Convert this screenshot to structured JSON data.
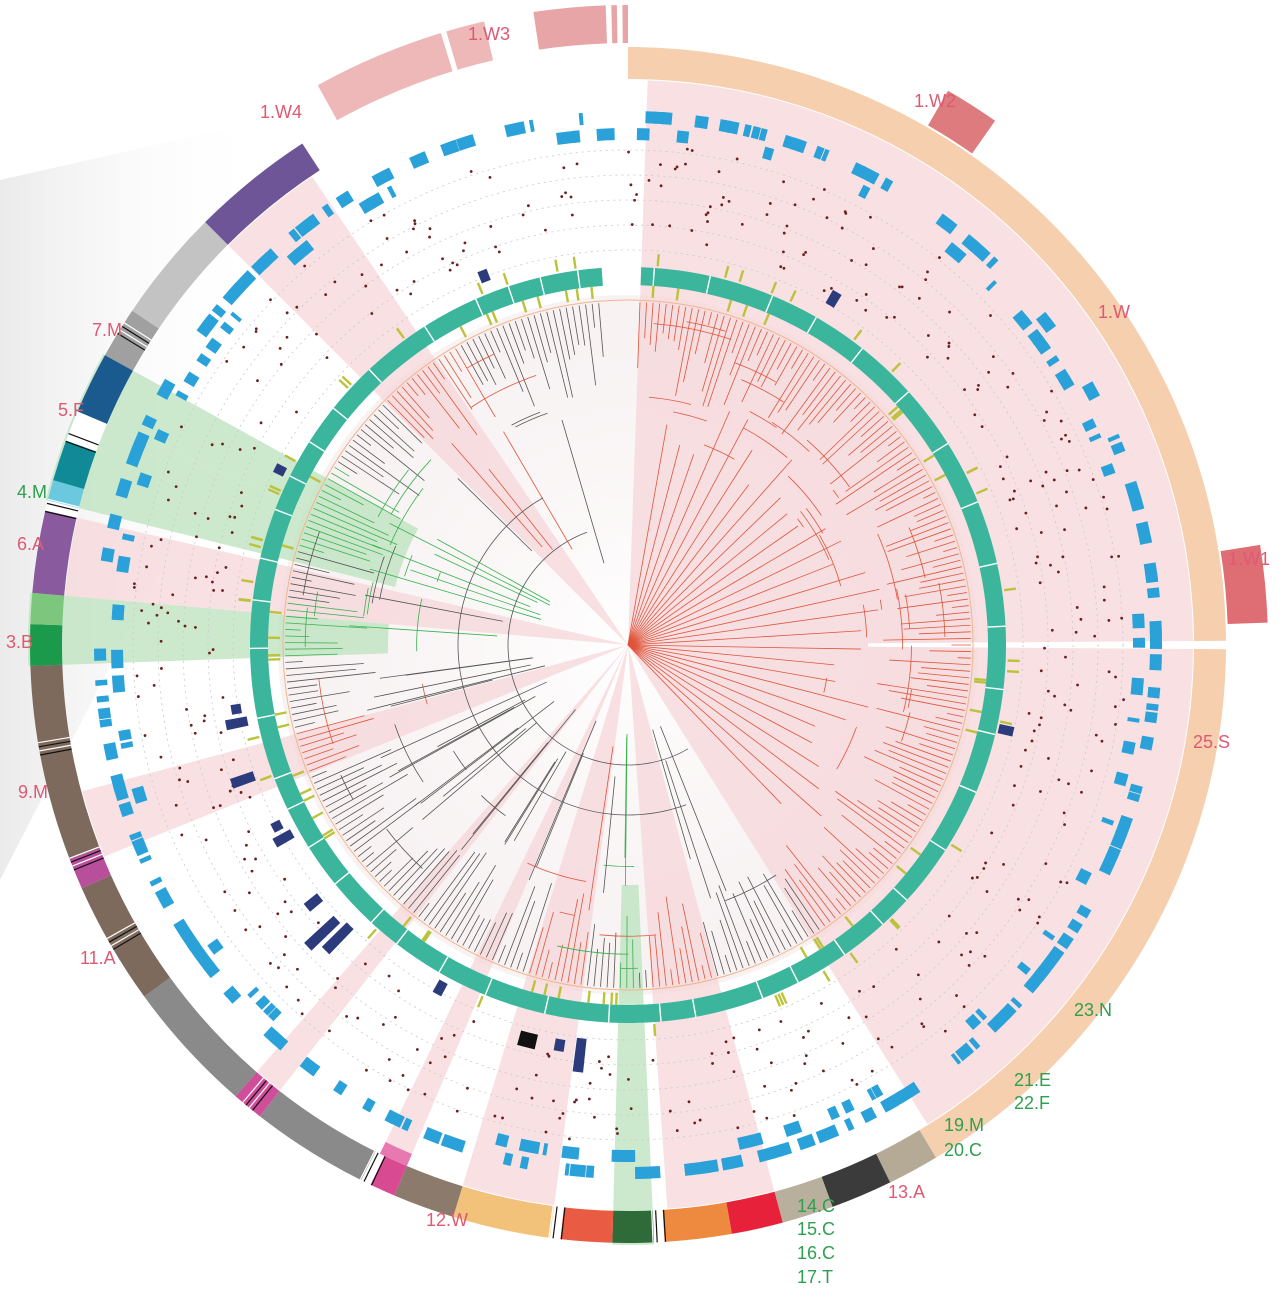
{
  "colors": {
    "pink_text": "#de5a72",
    "green_text": "#2ea04f",
    "highlight_pink": "#f6d6d9",
    "highlight_green": "#bfe3c0",
    "peach_ring": "#f5cfae",
    "teal_ring": "#3bb59c",
    "blue_ring": "#2aa2d9",
    "lime_ticks": "#bcc23a",
    "tree_red": "#e0543a",
    "tree_gray": "#555555",
    "tree_green": "#37b24d",
    "dots": "#6b1f1f",
    "navy_marks": "#2c3b7c"
  },
  "labels": {
    "l_1W3": "1.W3",
    "l_1W4": "1.W4",
    "l_1W2": "1.W2",
    "l_1W": "1.W",
    "l_1W1": "1.W1",
    "l_7M": "7.M",
    "l_5F": "5.F",
    "l_4M": "4.M",
    "l_6A": "6.A",
    "l_3B": "3.B",
    "l_9M": "9.M",
    "l_11A": "11.A",
    "l_12W": "12.W",
    "l_13A": "13.A",
    "l_14C": "14.C",
    "l_15C": "15.C",
    "l_16C": "16.C",
    "l_17T": "17.T",
    "l_19M": "19.M",
    "l_20C": "20.C",
    "l_21E": "21.E",
    "l_22F": "22.F",
    "l_23N": "23.N",
    "l_25S": "25.S"
  },
  "outer_ring_segments": [
    {
      "color": "#f5cfae",
      "from": -90,
      "to": 59
    },
    {
      "color": "#b5aa95",
      "from": 59,
      "to": 64
    },
    {
      "color": "#3b3b3b",
      "from": 64,
      "to": 70
    },
    {
      "color": "#b8b09c",
      "from": 70,
      "to": 75
    },
    {
      "color": "#e8213a",
      "from": 75,
      "to": 80
    },
    {
      "color": "#ee8a40",
      "from": 80,
      "to": 86.5
    },
    {
      "color": "#ffffff",
      "from": 86.5,
      "to": 87.5
    },
    {
      "color": "#2f6a39",
      "from": 87.5,
      "to": 91.5
    },
    {
      "color": "#ea5b44",
      "from": 91.5,
      "to": 96.5
    },
    {
      "color": "#ffffff",
      "from": 96.5,
      "to": 97.5
    },
    {
      "color": "#f3c27a",
      "from": 97.5,
      "to": 107
    },
    {
      "color": "#8c7a6c",
      "from": 107,
      "to": 113
    },
    {
      "color": "#d84a92",
      "from": 113,
      "to": 115.5
    },
    {
      "color": "#ffffff",
      "from": 115.5,
      "to": 116.5
    },
    {
      "color": "#8a8a8a",
      "from": 116.5,
      "to": 128
    },
    {
      "color": "#d04d9a",
      "from": 128,
      "to": 131
    },
    {
      "color": "#8a8a8a",
      "from": 131,
      "to": 144
    },
    {
      "color": "#7d6a5d",
      "from": 144,
      "to": 150
    },
    {
      "color": "#7d6a5d",
      "from": 150,
      "to": 156
    },
    {
      "color": "#b84f9b",
      "from": 156,
      "to": 159
    },
    {
      "color": "#7d6a5d",
      "from": 159,
      "to": 178
    },
    {
      "color": "#1a9a4a",
      "from": 178,
      "to": 182
    },
    {
      "color": "#7cc77d",
      "from": 182,
      "to": 185
    },
    {
      "color": "#8a5a9e",
      "from": 185,
      "to": 193
    },
    {
      "color": "#ffffff",
      "from": 193,
      "to": 194
    },
    {
      "color": "#6ac8df",
      "from": 194,
      "to": 196
    },
    {
      "color": "#0f8a96",
      "from": 196,
      "to": 200
    },
    {
      "color": "#ffffff",
      "from": 200,
      "to": 203
    },
    {
      "color": "#1b5a8f",
      "from": 203,
      "to": 209
    },
    {
      "color": "#a0a0a0",
      "from": 209,
      "to": 214
    },
    {
      "color": "#c3c3c3",
      "from": 214,
      "to": 225
    },
    {
      "color": "#6e5597",
      "from": 225,
      "to": 237
    }
  ],
  "pink_highlight_sectors": [
    {
      "from": -88,
      "to": 58
    },
    {
      "from": 75,
      "to": 86
    },
    {
      "from": 97.5,
      "to": 107
    },
    {
      "from": 113,
      "to": 116
    },
    {
      "from": 128,
      "to": 131
    },
    {
      "from": 158,
      "to": 165
    },
    {
      "from": 185,
      "to": 193
    },
    {
      "from": 225,
      "to": 236
    }
  ],
  "green_highlight_sectors": [
    {
      "from": 87.5,
      "to": 91.5
    },
    {
      "from": 178,
      "to": 185
    },
    {
      "from": 194,
      "to": 203
    },
    {
      "from": 203,
      "to": 209
    }
  ]
}
